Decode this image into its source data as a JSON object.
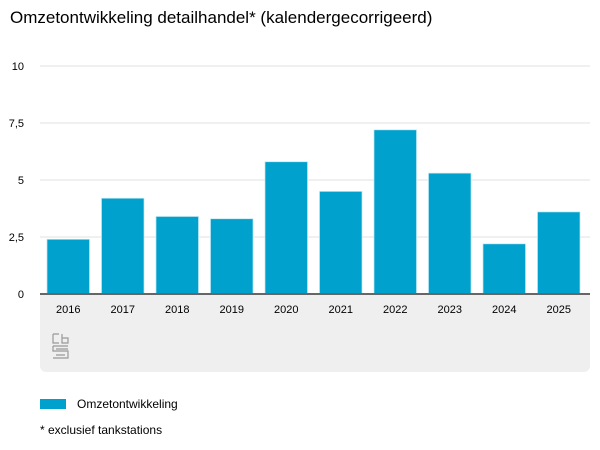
{
  "chart_data": {
    "type": "bar",
    "title": "Omzetontwikkeling detailhandel* (kalendergecorrigeerd)",
    "categories": [
      "2016",
      "2017",
      "2018",
      "2019",
      "2020",
      "2021",
      "2022",
      "2023",
      "2024",
      "2025"
    ],
    "series": [
      {
        "name": "Omzetontwikkeling",
        "values": [
          2.4,
          4.2,
          3.4,
          3.3,
          5.8,
          4.5,
          7.2,
          5.3,
          2.2,
          3.6
        ],
        "color": "#00a1cd"
      }
    ],
    "ylim": [
      0,
      10
    ],
    "yticks": [
      0,
      2.5,
      5,
      7.5,
      10
    ],
    "ytick_labels": [
      "0",
      "2,5",
      "5",
      "7,5",
      "10"
    ],
    "grid": true,
    "legend_position": "bottom-left",
    "footnote": "* exclusief tankstations",
    "logo": "cbs"
  }
}
